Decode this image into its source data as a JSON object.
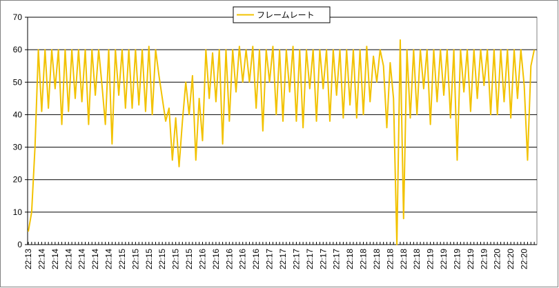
{
  "chart_data": {
    "type": "line",
    "categories": [
      "22:13",
      null,
      null,
      null,
      "22:14",
      null,
      null,
      null,
      "22:14",
      null,
      null,
      null,
      "22:14",
      null,
      null,
      null,
      "22:14",
      null,
      null,
      null,
      "22:14",
      null,
      null,
      null,
      "22:14",
      null,
      null,
      null,
      "22:15",
      null,
      null,
      null,
      "22:15",
      null,
      null,
      null,
      "22:15",
      null,
      null,
      null,
      "22:15",
      null,
      null,
      null,
      "22:15",
      null,
      null,
      null,
      "22:15",
      null,
      null,
      null,
      "22:16",
      null,
      null,
      null,
      "22:16",
      null,
      null,
      null,
      "22:16",
      null,
      null,
      null,
      "22:16",
      null,
      null,
      null,
      "22:16",
      null,
      null,
      null,
      "22:17",
      null,
      null,
      null,
      "22:17",
      null,
      null,
      null,
      "22:17",
      null,
      null,
      null,
      "22:17",
      null,
      null,
      null,
      "22:17",
      null,
      null,
      null,
      "22:17",
      null,
      null,
      null,
      "22:18",
      null,
      null,
      null,
      "22:18",
      null,
      null,
      null,
      "22:18",
      null,
      null,
      null,
      "22:18",
      null,
      null,
      null,
      "22:18",
      null,
      null,
      null,
      "22:18",
      null,
      null,
      null,
      "22:19",
      null,
      null,
      null,
      "22:19",
      null,
      null,
      null,
      "22:19",
      null,
      null,
      null,
      "22:19",
      null,
      null,
      null,
      "22:19",
      null,
      null,
      null,
      "22:20",
      null,
      null,
      null,
      "22:20",
      null,
      null,
      null,
      "22:20",
      null,
      null,
      null
    ],
    "series": [
      {
        "name": "フレームレート",
        "color": "#f2c200",
        "values": [
          4,
          10,
          30,
          60,
          41,
          60,
          42,
          60,
          48,
          60,
          37,
          60,
          41,
          60,
          45,
          60,
          44,
          60,
          37,
          60,
          46,
          60,
          49,
          37,
          60,
          31,
          60,
          46,
          60,
          42,
          60,
          42,
          60,
          43,
          60,
          41,
          61,
          40,
          60,
          52,
          45,
          38,
          42,
          26,
          39,
          24,
          38,
          50,
          40,
          52,
          26,
          45,
          32,
          60,
          45,
          59,
          44,
          60,
          31,
          60,
          38,
          60,
          47,
          61,
          50,
          60,
          50,
          61,
          42,
          60,
          35,
          60,
          50,
          61,
          40,
          60,
          38,
          60,
          47,
          61,
          38,
          60,
          36,
          60,
          48,
          60,
          38,
          60,
          48,
          60,
          38,
          60,
          46,
          60,
          39,
          60,
          43,
          60,
          39,
          60,
          40,
          61,
          44,
          58,
          50,
          60,
          55,
          36,
          56,
          45,
          0,
          63,
          8,
          60,
          39,
          60,
          40,
          60,
          48,
          60,
          37,
          60,
          44,
          60,
          46,
          60,
          39,
          60,
          26,
          60,
          47,
          60,
          41,
          60,
          45,
          60,
          49,
          60,
          40,
          60,
          40,
          60,
          44,
          60,
          39,
          60,
          45,
          60,
          49,
          26,
          55,
          60
        ]
      }
    ],
    "ylim": [
      0,
      70
    ],
    "yticks": [
      0,
      10,
      20,
      30,
      40,
      50,
      60,
      70
    ],
    "grid": true,
    "legend": "top"
  }
}
